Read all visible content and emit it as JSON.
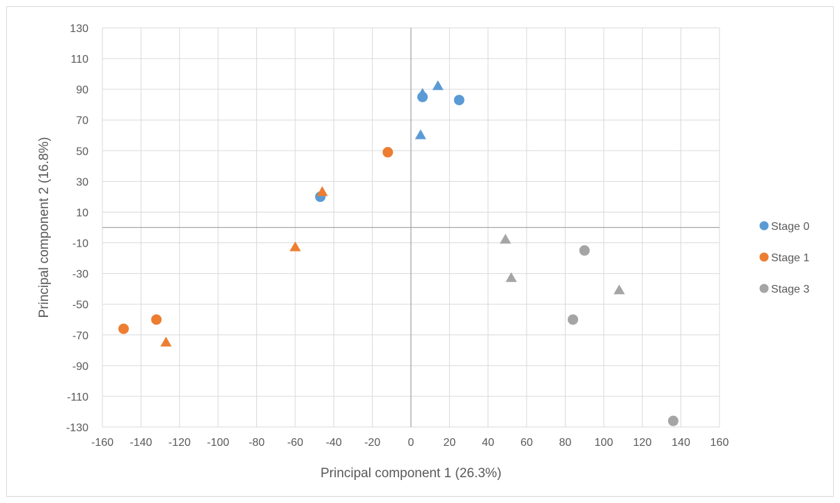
{
  "chart_data": {
    "type": "scatter",
    "title": "",
    "xlabel": "Principal component 1 (26.3%)",
    "ylabel": "Principal component 2 (16.8%)",
    "xlim": [
      -160,
      160
    ],
    "ylim": [
      -130,
      130
    ],
    "xticks": [
      -160,
      -140,
      -120,
      -100,
      -80,
      -60,
      -40,
      -20,
      0,
      20,
      40,
      60,
      80,
      100,
      120,
      140,
      160
    ],
    "yticks": [
      130,
      110,
      90,
      70,
      50,
      30,
      10,
      -10,
      -30,
      -50,
      -70,
      -90,
      -110,
      -130
    ],
    "grid": true,
    "legend_position": "right",
    "series": [
      {
        "name": "Stage 0",
        "color": "#5b9bd5",
        "points": [
          {
            "x": 6,
            "y": 85,
            "marker": "circle"
          },
          {
            "x": 25,
            "y": 83,
            "marker": "circle"
          },
          {
            "x": -47,
            "y": 20,
            "marker": "circle"
          },
          {
            "x": 6,
            "y": 87,
            "marker": "triangle"
          },
          {
            "x": 14,
            "y": 92,
            "marker": "triangle"
          },
          {
            "x": 5,
            "y": 60,
            "marker": "triangle"
          }
        ]
      },
      {
        "name": "Stage 1",
        "color": "#ed7d31",
        "points": [
          {
            "x": -12,
            "y": 49,
            "marker": "circle"
          },
          {
            "x": -132,
            "y": -60,
            "marker": "circle"
          },
          {
            "x": -149,
            "y": -66,
            "marker": "circle"
          },
          {
            "x": -46,
            "y": 23,
            "marker": "triangle"
          },
          {
            "x": -60,
            "y": -13,
            "marker": "triangle"
          },
          {
            "x": -127,
            "y": -75,
            "marker": "triangle"
          }
        ]
      },
      {
        "name": "Stage 3",
        "color": "#a5a5a5",
        "points": [
          {
            "x": 90,
            "y": -15,
            "marker": "circle"
          },
          {
            "x": 84,
            "y": -60,
            "marker": "circle"
          },
          {
            "x": 136,
            "y": -126,
            "marker": "circle"
          },
          {
            "x": 49,
            "y": -8,
            "marker": "triangle"
          },
          {
            "x": 52,
            "y": -33,
            "marker": "triangle"
          },
          {
            "x": 108,
            "y": -41,
            "marker": "triangle"
          }
        ]
      }
    ]
  }
}
